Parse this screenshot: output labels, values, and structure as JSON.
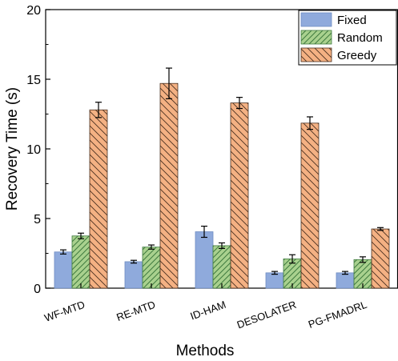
{
  "chart_data": {
    "type": "bar",
    "xlabel": "Methods",
    "ylabel": "Recovery Time (s)",
    "ylim": [
      0,
      20
    ],
    "yticks": [
      0,
      5,
      10,
      15,
      20
    ],
    "grid": false,
    "legend_position": "top-right",
    "categories": [
      "WF-MTD",
      "RE-MTD",
      "ID-HAM",
      "DESOLATER",
      "PG-FMADRL"
    ],
    "series": [
      {
        "name": "Fixed",
        "values": [
          2.6,
          1.9,
          4.05,
          1.1,
          1.1
        ],
        "errors": [
          0.15,
          0.1,
          0.4,
          0.1,
          0.1
        ],
        "color": "#8FAADC",
        "stroke": "#6E8CC2",
        "pattern": "solid"
      },
      {
        "name": "Random",
        "values": [
          3.75,
          2.95,
          3.05,
          2.1,
          2.05
        ],
        "errors": [
          0.2,
          0.15,
          0.2,
          0.3,
          0.2
        ],
        "color": "#A9D18E",
        "stroke": "#3F7A3F",
        "pattern": "hatch-forward"
      },
      {
        "name": "Greedy",
        "values": [
          12.8,
          14.7,
          13.3,
          11.85,
          4.25
        ],
        "errors": [
          0.55,
          1.1,
          0.4,
          0.45,
          0.1
        ],
        "color": "#F4B183",
        "stroke": "#4A3020",
        "pattern": "hatch-back"
      }
    ]
  }
}
